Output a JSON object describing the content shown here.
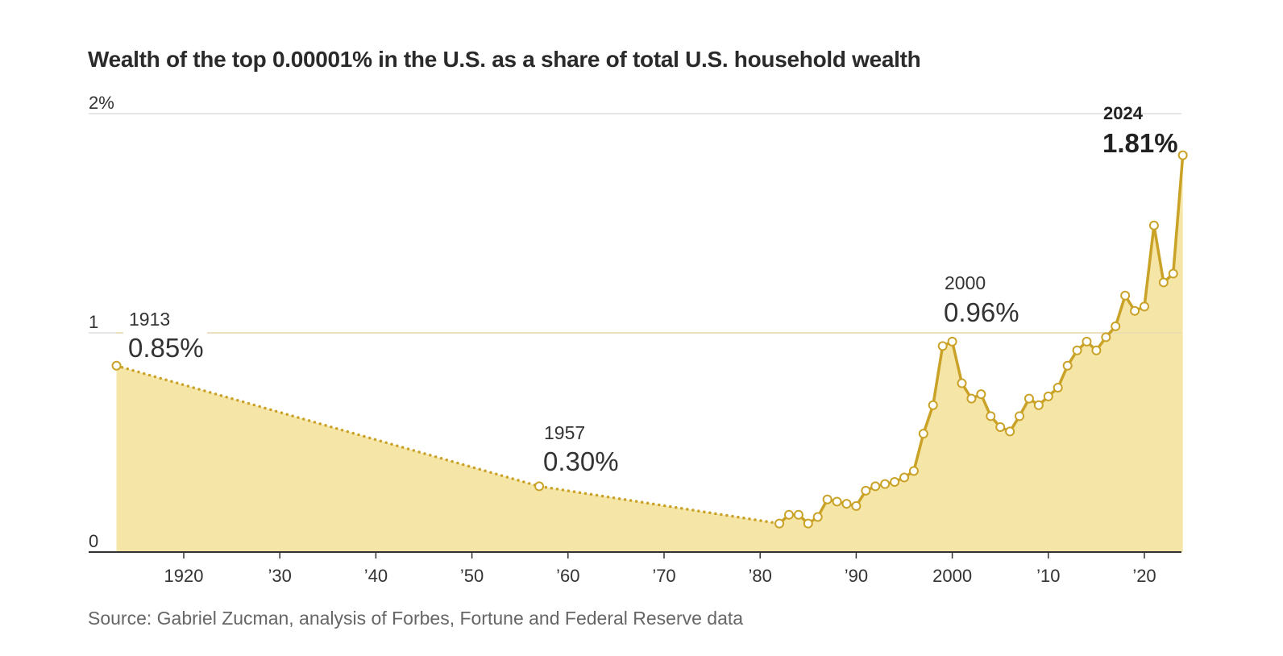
{
  "chart_data": {
    "type": "area",
    "title": "Wealth of the top 0.00001% in the U.S. as a share of total U.S. household wealth",
    "source": "Source: Gabriel Zucman, analysis of Forbes, Fortune and Federal Reserve data",
    "xlim": [
      1911,
      2024
    ],
    "ylim": [
      0,
      2
    ],
    "grid": true,
    "colors": {
      "line": "#c9a227",
      "area": "#f5e6a8",
      "grid": "#dddddd",
      "axis": "#333333",
      "marker_fill": "#ffffff"
    },
    "y_ticks": [
      {
        "value": 2,
        "label": "2%"
      },
      {
        "value": 1,
        "label": "1"
      },
      {
        "value": 0,
        "label": "0"
      }
    ],
    "x_ticks": [
      {
        "value": 1920,
        "label": "1920"
      },
      {
        "value": 1930,
        "label": "’30"
      },
      {
        "value": 1940,
        "label": "’40"
      },
      {
        "value": 1950,
        "label": "’50"
      },
      {
        "value": 1960,
        "label": "’60"
      },
      {
        "value": 1970,
        "label": "’70"
      },
      {
        "value": 1980,
        "label": "’80"
      },
      {
        "value": 1990,
        "label": "’90"
      },
      {
        "value": 2000,
        "label": "2000"
      },
      {
        "value": 2010,
        "label": "’10"
      },
      {
        "value": 2020,
        "label": "’20"
      }
    ],
    "sparse_points": [
      {
        "x": 1913,
        "y": 0.85
      },
      {
        "x": 1957,
        "y": 0.3
      },
      {
        "x": 1982,
        "y": 0.13
      }
    ],
    "series": [
      {
        "x": [
          1982,
          1983,
          1984,
          1985,
          1986,
          1987,
          1988,
          1989,
          1990,
          1991,
          1992,
          1993,
          1994,
          1995,
          1996,
          1997,
          1998,
          1999,
          2000,
          2001,
          2002,
          2003,
          2004,
          2005,
          2006,
          2007,
          2008,
          2009,
          2010,
          2011,
          2012,
          2013,
          2014,
          2015,
          2016,
          2017,
          2018,
          2019,
          2020,
          2021,
          2022,
          2023,
          2024
        ],
        "values": [
          0.13,
          0.17,
          0.17,
          0.13,
          0.16,
          0.24,
          0.23,
          0.22,
          0.21,
          0.28,
          0.3,
          0.31,
          0.32,
          0.34,
          0.37,
          0.54,
          0.67,
          0.94,
          0.96,
          0.77,
          0.7,
          0.72,
          0.62,
          0.57,
          0.55,
          0.62,
          0.7,
          0.67,
          0.71,
          0.75,
          0.85,
          0.92,
          0.96,
          0.92,
          0.98,
          1.03,
          1.17,
          1.1,
          1.12,
          1.49,
          1.23,
          1.27,
          1.81
        ]
      }
    ],
    "annotations": [
      {
        "year": "1913",
        "value": "0.85%",
        "bold": false
      },
      {
        "year": "1957",
        "value": "0.30%",
        "bold": false
      },
      {
        "year": "2000",
        "value": "0.96%",
        "bold": false
      },
      {
        "year": "2024",
        "value": "1.81%",
        "bold": true
      }
    ]
  }
}
